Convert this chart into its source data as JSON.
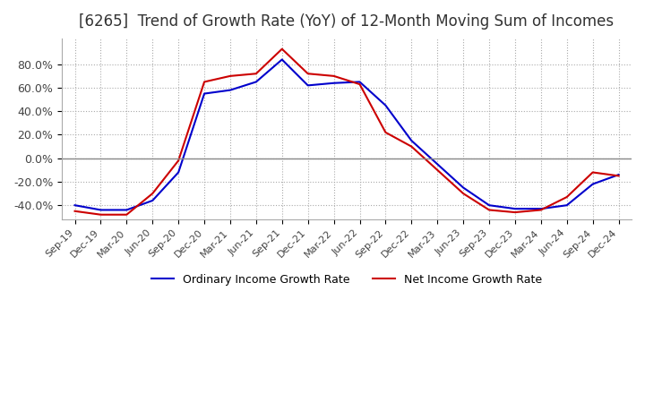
{
  "title": "[6265]  Trend of Growth Rate (YoY) of 12-Month Moving Sum of Incomes",
  "title_fontsize": 12,
  "background_color": "#ffffff",
  "plot_background": "#ffffff",
  "grid_color": "#aaaaaa",
  "grid_style": "dotted",
  "ylim": [
    -0.52,
    1.02
  ],
  "yticks": [
    -0.4,
    -0.2,
    0.0,
    0.2,
    0.4,
    0.6,
    0.8
  ],
  "ytick_labels": [
    "-40.0%",
    "-20.0%",
    "0.0%",
    "20.0%",
    "40.0%",
    "60.0%",
    "80.0%"
  ],
  "x_labels": [
    "Sep-19",
    "Dec-19",
    "Mar-20",
    "Jun-20",
    "Sep-20",
    "Dec-20",
    "Mar-21",
    "Jun-21",
    "Sep-21",
    "Dec-21",
    "Mar-22",
    "Jun-22",
    "Sep-22",
    "Dec-22",
    "Mar-23",
    "Jun-23",
    "Sep-23",
    "Dec-23",
    "Mar-24",
    "Jun-24",
    "Sep-24",
    "Dec-24"
  ],
  "ordinary_income": [
    -0.4,
    -0.44,
    -0.44,
    -0.36,
    -0.12,
    0.55,
    0.58,
    0.65,
    0.84,
    0.62,
    0.64,
    0.65,
    0.45,
    0.15,
    -0.05,
    -0.25,
    -0.4,
    -0.43,
    -0.43,
    -0.4,
    -0.22,
    -0.14
  ],
  "net_income": [
    -0.45,
    -0.48,
    -0.48,
    -0.3,
    -0.02,
    0.65,
    0.7,
    0.72,
    0.93,
    0.72,
    0.7,
    0.63,
    0.22,
    0.1,
    -0.1,
    -0.3,
    -0.44,
    -0.46,
    -0.44,
    -0.33,
    -0.12,
    -0.15
  ],
  "line_color_ordinary": "#0000cc",
  "line_color_net": "#cc0000",
  "line_width": 1.5,
  "legend_ordinary": "Ordinary Income Growth Rate",
  "legend_net": "Net Income Growth Rate"
}
